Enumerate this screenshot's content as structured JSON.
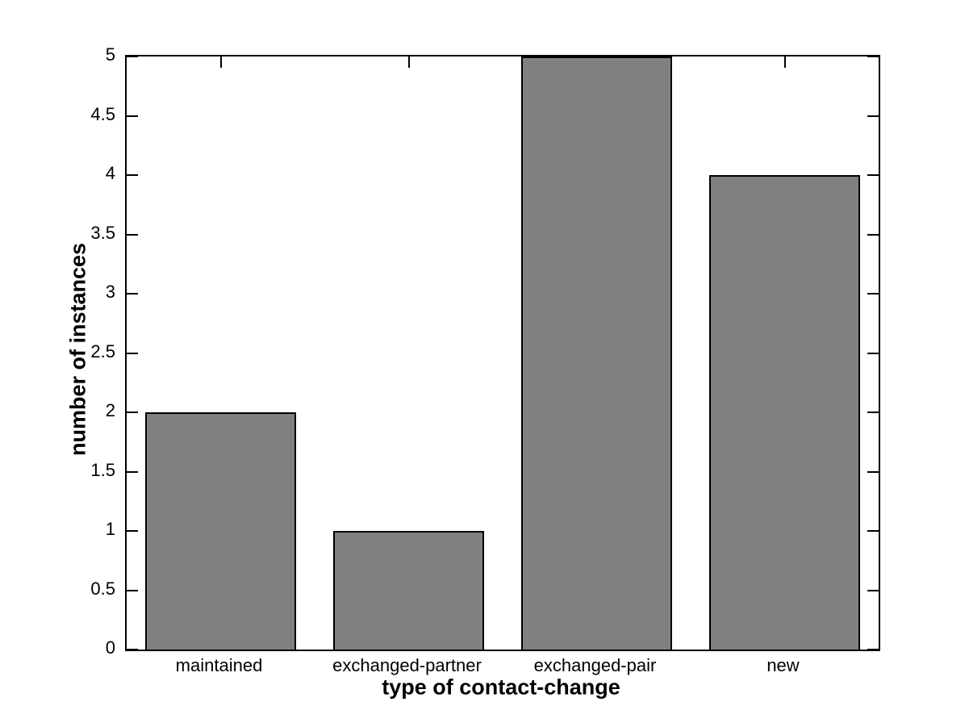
{
  "figure": {
    "background_color": "#ffffff",
    "axis_color": "#000000",
    "bar_fill_color": "#808080",
    "bar_edge_color": "#000000",
    "tick_direction": "in"
  },
  "chart_data": {
    "type": "bar",
    "categories": [
      "maintained",
      "exchanged-partner",
      "exchanged-pair",
      "new"
    ],
    "values": [
      2,
      1,
      5,
      4
    ],
    "title": "",
    "xlabel": "type of contact-change",
    "ylabel": "number of instances",
    "ylim": [
      0,
      5
    ],
    "yticks": [
      0,
      0.5,
      1,
      1.5,
      2,
      2.5,
      3,
      3.5,
      4,
      4.5,
      5
    ],
    "ytick_labels": [
      "0",
      "0.5",
      "1",
      "1.5",
      "2",
      "2.5",
      "3",
      "3.5",
      "4",
      "4.5",
      "5"
    ],
    "bar_width_fraction": 0.8,
    "grid": false,
    "legend": null
  }
}
